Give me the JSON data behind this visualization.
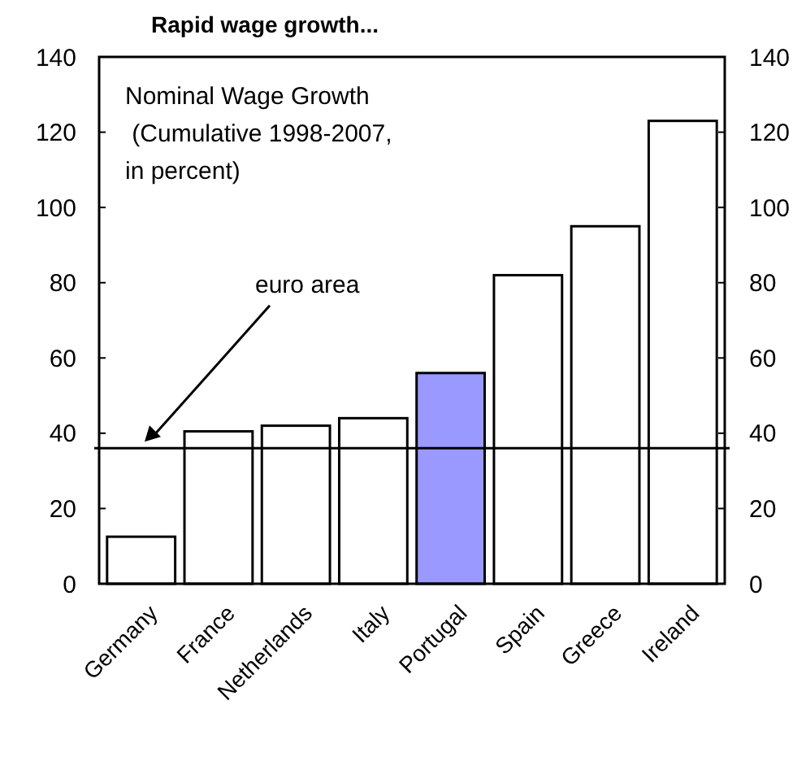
{
  "chart_data": {
    "type": "bar",
    "title": "Rapid wage growth...",
    "categories": [
      "Germany",
      "France",
      "Netherlands",
      "Italy",
      "Portugal",
      "Spain",
      "Greece",
      "Ireland"
    ],
    "values": [
      12.5,
      40.5,
      42,
      44,
      56,
      82,
      95,
      123
    ],
    "colors": [
      "#ffffff",
      "#ffffff",
      "#ffffff",
      "#ffffff",
      "#9999ff",
      "#ffffff",
      "#ffffff",
      "#ffffff"
    ],
    "ylim": [
      0,
      140
    ],
    "yticks": [
      0,
      20,
      40,
      60,
      80,
      100,
      120,
      140
    ],
    "y2lim": [
      0,
      140
    ],
    "y2ticks": [
      0,
      20,
      40,
      60,
      80,
      100,
      120,
      140
    ],
    "annotations": [
      "Nominal Wage Growth\n (Cumulative 1998-2007,\nin percent)"
    ],
    "ref_lines": [
      {
        "axis": "y",
        "value": 36,
        "label": "euro area",
        "color": "#000000"
      }
    ],
    "grid": false
  }
}
